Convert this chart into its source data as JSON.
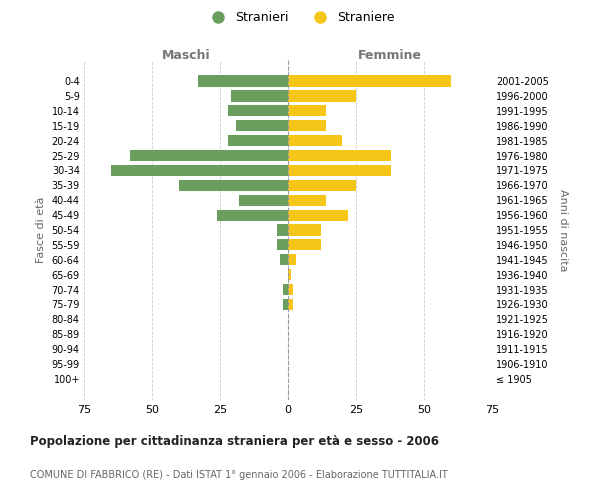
{
  "age_groups": [
    "100+",
    "95-99",
    "90-94",
    "85-89",
    "80-84",
    "75-79",
    "70-74",
    "65-69",
    "60-64",
    "55-59",
    "50-54",
    "45-49",
    "40-44",
    "35-39",
    "30-34",
    "25-29",
    "20-24",
    "15-19",
    "10-14",
    "5-9",
    "0-4"
  ],
  "birth_years": [
    "≤ 1905",
    "1906-1910",
    "1911-1915",
    "1916-1920",
    "1921-1925",
    "1926-1930",
    "1931-1935",
    "1936-1940",
    "1941-1945",
    "1946-1950",
    "1951-1955",
    "1956-1960",
    "1961-1965",
    "1966-1970",
    "1971-1975",
    "1976-1980",
    "1981-1985",
    "1986-1990",
    "1991-1995",
    "1996-2000",
    "2001-2005"
  ],
  "maschi": [
    0,
    0,
    0,
    0,
    0,
    2,
    2,
    0,
    3,
    4,
    4,
    26,
    18,
    40,
    65,
    58,
    22,
    19,
    22,
    21,
    33
  ],
  "femmine": [
    0,
    0,
    0,
    0,
    0,
    2,
    2,
    1,
    3,
    12,
    12,
    22,
    14,
    25,
    38,
    38,
    20,
    14,
    14,
    25,
    60
  ],
  "color_maschi": "#6a9e5e",
  "color_femmine": "#f5c518",
  "title": "Popolazione per cittadinanza straniera per età e sesso - 2006",
  "subtitle": "COMUNE DI FABBRICO (RE) - Dati ISTAT 1° gennaio 2006 - Elaborazione TUTTITALIA.IT",
  "xlabel_left": "Maschi",
  "xlabel_right": "Femmine",
  "ylabel_left": "Fasce di età",
  "ylabel_right": "Anni di nascita",
  "legend_maschi": "Stranieri",
  "legend_femmine": "Straniere",
  "xlim": 75,
  "background_color": "#ffffff",
  "grid_color": "#cccccc"
}
